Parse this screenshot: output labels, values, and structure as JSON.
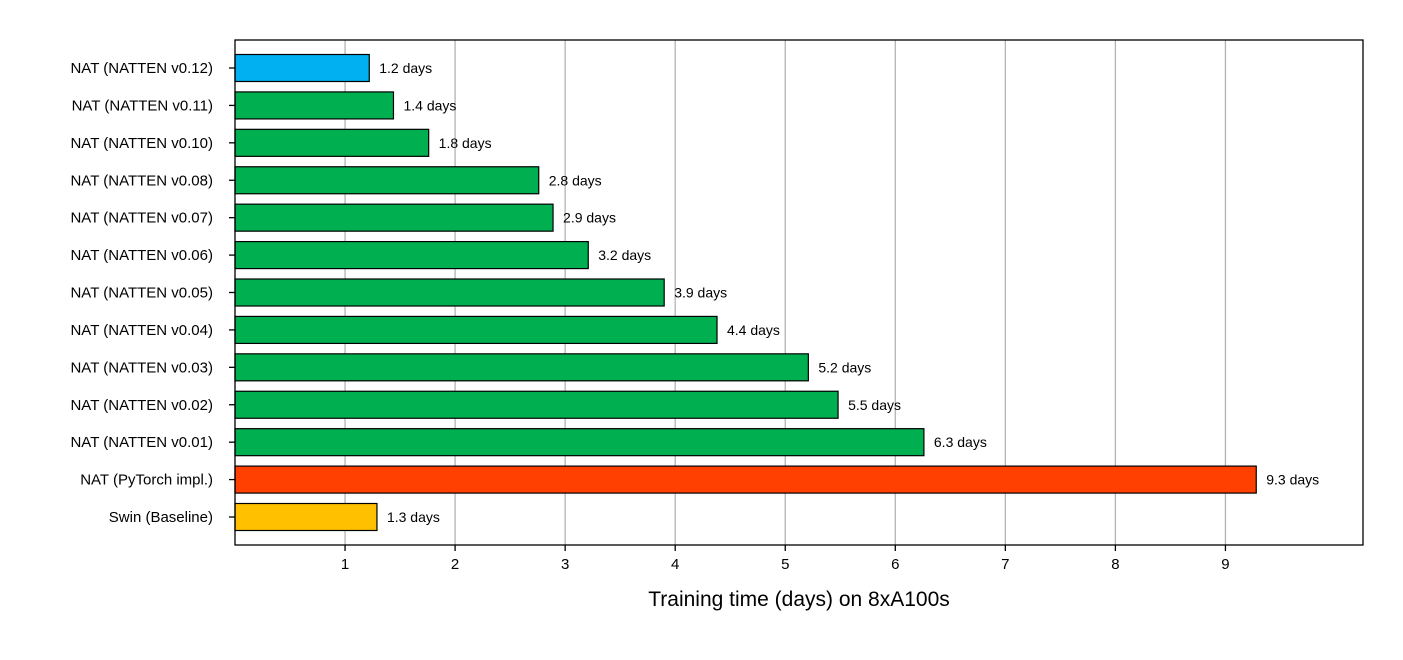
{
  "chart_data": {
    "type": "bar",
    "orientation": "horizontal",
    "title": "",
    "xlabel": "Training time (days) on 8xA100s",
    "ylabel": "",
    "xlim": [
      0,
      10.25
    ],
    "xticks": [
      1,
      2,
      3,
      4,
      5,
      6,
      7,
      8,
      9
    ],
    "grid": "vertical",
    "categories": [
      "NAT (NATTEN v0.12)",
      "NAT (NATTEN v0.11)",
      "NAT (NATTEN v0.10)",
      "NAT (NATTEN v0.08)",
      "NAT (NATTEN v0.07)",
      "NAT (NATTEN v0.06)",
      "NAT (NATTEN v0.05)",
      "NAT (NATTEN v0.04)",
      "NAT (NATTEN v0.03)",
      "NAT (NATTEN v0.02)",
      "NAT (NATTEN v0.01)",
      "NAT (PyTorch impl.)",
      "Swin (Baseline)"
    ],
    "values": [
      1.2,
      1.4,
      1.8,
      2.8,
      2.9,
      3.2,
      3.9,
      4.4,
      5.2,
      5.5,
      6.3,
      9.3,
      1.3
    ],
    "bar_lengths": [
      1.22,
      1.44,
      1.76,
      2.76,
      2.89,
      3.21,
      3.9,
      4.38,
      5.21,
      5.48,
      6.26,
      9.28,
      1.29
    ],
    "value_labels": [
      "1.2 days",
      "1.4 days",
      "1.8 days",
      "2.8 days",
      "2.9 days",
      "3.2 days",
      "3.9 days",
      "4.4 days",
      "5.2 days",
      "5.5 days",
      "6.3 days",
      "9.3 days",
      "1.3 days"
    ],
    "colors": [
      "#00b0f0",
      "#00b050",
      "#00b050",
      "#00b050",
      "#00b050",
      "#00b050",
      "#00b050",
      "#00b050",
      "#00b050",
      "#00b050",
      "#00b050",
      "#ff4000",
      "#ffc000"
    ]
  }
}
